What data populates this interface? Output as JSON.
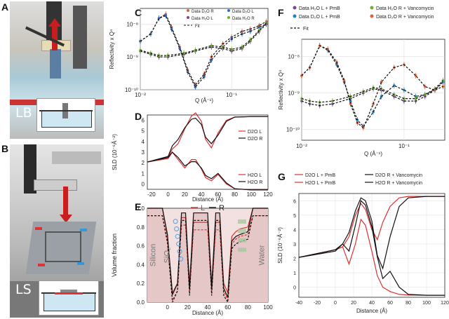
{
  "panels": {
    "A": {
      "letter": "A",
      "setup": "LB"
    },
    "B": {
      "letter": "B",
      "setup": "LS"
    },
    "C": {
      "letter": "C"
    },
    "D": {
      "letter": "D"
    },
    "E": {
      "letter": "E"
    },
    "F": {
      "letter": "F"
    },
    "G": {
      "letter": "G"
    }
  },
  "chart_data": [
    {
      "id": "C",
      "type": "line",
      "xlabel": "Q (Å⁻¹)",
      "ylabel": "Reflectivity x Q⁴",
      "x_scale": "log",
      "y_scale": "log",
      "xlim": [
        0.01,
        0.25
      ],
      "ylim": [
        1e-10,
        3e-08
      ],
      "xticks": [
        "10⁻²",
        "10⁻¹"
      ],
      "yticks": [
        "10⁻⁸",
        "10⁻⁹",
        "10⁻¹⁰"
      ],
      "legend": [
        "Data D₂O R",
        "Data H₂O L",
        "Data D₂O L",
        "Data H₂O R",
        "Fit"
      ],
      "series": [
        {
          "name": "Data D₂O R",
          "color": "#e0603a",
          "x": [
            0.01,
            0.013,
            0.016,
            0.019,
            0.022,
            0.027,
            0.033,
            0.04,
            0.05,
            0.06,
            0.08,
            0.1,
            0.13,
            0.16,
            0.2,
            0.24
          ],
          "y": [
            3e-09,
            5e-09,
            1.5e-08,
            2e-08,
            8e-09,
            2e-09,
            4e-10,
            1.4e-10,
            3e-10,
            1e-09,
            2.5e-09,
            4e-09,
            6e-09,
            7e-09,
            9e-09,
            1.2e-08
          ]
        },
        {
          "name": "Data D₂O L",
          "color": "#3070c0",
          "x": [
            0.01,
            0.013,
            0.016,
            0.019,
            0.022,
            0.027,
            0.033,
            0.04,
            0.05,
            0.06,
            0.08,
            0.1,
            0.13,
            0.16,
            0.2,
            0.24
          ],
          "y": [
            3e-09,
            5e-09,
            1.5e-08,
            1.8e-08,
            7e-09,
            1.8e-09,
            3.5e-10,
            1.2e-10,
            2.5e-10,
            8e-10,
            2e-09,
            3.5e-09,
            5e-09,
            6e-09,
            8e-09,
            1e-08
          ]
        },
        {
          "name": "Data H₂O L",
          "color": "#8040a0",
          "x": [
            0.01,
            0.013,
            0.016,
            0.02,
            0.03,
            0.04,
            0.06,
            0.08,
            0.1,
            0.13,
            0.16,
            0.2,
            0.24
          ],
          "y": [
            1.5e-09,
            1.2e-09,
            1e-09,
            1e-09,
            1.2e-09,
            1.5e-09,
            2e-09,
            1.8e-09,
            1.5e-09,
            1.8e-09,
            3e-09,
            6e-09,
            1e-08
          ]
        },
        {
          "name": "Data H₂O R",
          "color": "#70b030",
          "x": [
            0.01,
            0.013,
            0.016,
            0.02,
            0.03,
            0.04,
            0.06,
            0.08,
            0.1,
            0.13,
            0.16,
            0.2,
            0.24
          ],
          "y": [
            1.6e-09,
            1.3e-09,
            1.1e-09,
            1.1e-09,
            1.3e-09,
            1.6e-09,
            2.2e-09,
            2e-09,
            1.7e-09,
            2e-09,
            3.3e-09,
            6.5e-09,
            1.1e-08
          ]
        }
      ]
    },
    {
      "id": "D",
      "type": "line",
      "xlabel": "Distance (Å)",
      "ylabel": "SLD (10⁻⁶Å⁻²)",
      "xlim": [
        -25,
        120
      ],
      "ylim": [
        -0.5,
        6.5
      ],
      "xticks": [
        -20,
        0,
        20,
        40,
        60,
        80,
        100,
        120
      ],
      "yticks": [
        0,
        1,
        2,
        3,
        4,
        5,
        6
      ],
      "legend_top": [
        "D2O L",
        "D2O R"
      ],
      "legend_bottom": [
        "H2O L",
        "H2O R"
      ],
      "series": [
        {
          "name": "D2O L",
          "color": "#e03030",
          "x": [
            -25,
            0,
            5,
            12,
            20,
            28,
            33,
            40,
            45,
            52,
            60,
            70,
            80,
            100,
            120
          ],
          "y": [
            2.07,
            2.5,
            3.3,
            3.8,
            5.2,
            6.4,
            6.7,
            5.9,
            4.2,
            3.4,
            4.8,
            6.0,
            6.3,
            6.35,
            6.35
          ]
        },
        {
          "name": "D2O R",
          "color": "#111111",
          "x": [
            -25,
            0,
            5,
            12,
            20,
            28,
            33,
            40,
            45,
            52,
            60,
            70,
            80,
            100,
            120
          ],
          "y": [
            2.07,
            2.6,
            3.6,
            4.2,
            5.3,
            6.1,
            6.2,
            5.6,
            4.4,
            3.8,
            4.6,
            5.9,
            6.3,
            6.35,
            6.35
          ]
        },
        {
          "name": "H2O L",
          "color": "#e03030",
          "x": [
            -25,
            0,
            5,
            12,
            20,
            28,
            33,
            40,
            45,
            52,
            60,
            70,
            80,
            100,
            120
          ],
          "y": [
            2.07,
            2.4,
            3.0,
            2.3,
            1.5,
            2.3,
            2.3,
            1.4,
            0.6,
            0.3,
            0.9,
            0.0,
            -0.45,
            -0.56,
            -0.56
          ]
        },
        {
          "name": "H2O R",
          "color": "#111111",
          "x": [
            -25,
            0,
            5,
            12,
            20,
            28,
            33,
            40,
            45,
            52,
            60,
            70,
            80,
            100,
            120
          ],
          "y": [
            2.07,
            2.5,
            3.0,
            2.5,
            1.7,
            2.1,
            2.1,
            1.5,
            0.8,
            0.5,
            1.0,
            0.1,
            -0.45,
            -0.56,
            -0.56
          ]
        }
      ]
    },
    {
      "id": "E",
      "type": "area",
      "xlabel": "Distance (Å)",
      "ylabel": "Volume fraction",
      "xlim": [
        -20,
        100
      ],
      "ylim": [
        0,
        1.0
      ],
      "xticks": [
        0,
        20,
        40,
        60,
        80,
        100
      ],
      "yticks": [
        0.0,
        0.2,
        0.4,
        0.6,
        0.8,
        1.0
      ],
      "legend": [
        "L",
        "R"
      ],
      "region_labels": [
        "Silicon",
        "SiO₂",
        "Water"
      ],
      "series": [
        {
          "name": "L",
          "color": "#e03030",
          "x": [
            -20,
            -5,
            0,
            5,
            10,
            14,
            18,
            22,
            26,
            30,
            35,
            40,
            44,
            48,
            52,
            56,
            60,
            64,
            68,
            72,
            80,
            85,
            90,
            100
          ],
          "y": [
            1,
            1,
            0.7,
            0.1,
            0.2,
            0.9,
            0.9,
            0.2,
            0.85,
            0.85,
            0.85,
            0.85,
            0.2,
            0.85,
            0.85,
            0.2,
            0.1,
            0.7,
            0.75,
            0.78,
            0.8,
            1,
            1,
            1
          ]
        },
        {
          "name": "R",
          "color": "#111111",
          "x": [
            -20,
            -5,
            0,
            5,
            10,
            14,
            18,
            22,
            26,
            30,
            35,
            40,
            44,
            48,
            52,
            56,
            60,
            64,
            68,
            72,
            80,
            85,
            90,
            100
          ],
          "y": [
            1,
            1,
            0.72,
            0.08,
            0.2,
            0.95,
            0.95,
            0.15,
            0.95,
            0.95,
            0.95,
            0.95,
            0.15,
            0.95,
            0.95,
            0.15,
            0.05,
            0.65,
            0.7,
            0.72,
            0.75,
            1,
            1,
            1
          ]
        }
      ]
    },
    {
      "id": "F",
      "type": "line",
      "xlabel": "Q (Å⁻¹)",
      "ylabel": "Reflectivity x Q⁴",
      "x_scale": "log",
      "y_scale": "log",
      "xlim": [
        0.01,
        0.25
      ],
      "ylim": [
        5e-11,
        3e-08
      ],
      "xticks": [
        "10⁻²",
        "10⁻¹"
      ],
      "yticks": [
        "10⁻⁸",
        "10⁻⁹",
        "10⁻¹⁰"
      ],
      "legend": [
        "Data H₂O L + PmB",
        "Data D₂O L + PmB",
        "Data H₂O R + Vancomycin",
        "Data D₂O R + Vancomycin",
        "Fit"
      ],
      "series": [
        {
          "name": "Data H₂O L + PmB",
          "color": "#8040a0",
          "x": [
            0.01,
            0.012,
            0.015,
            0.02,
            0.03,
            0.04,
            0.05,
            0.06,
            0.08,
            0.1,
            0.13,
            0.16,
            0.2,
            0.24
          ],
          "y": [
            6e-10,
            5e-10,
            4.5e-10,
            5e-10,
            7e-10,
            1e-09,
            1.3e-09,
            1.2e-09,
            8e-10,
            6e-10,
            6e-10,
            8e-10,
            1.2e-09,
            2e-09
          ]
        },
        {
          "name": "Data D₂O L + PmB",
          "color": "#2080c0",
          "x": [
            0.01,
            0.012,
            0.015,
            0.018,
            0.022,
            0.026,
            0.03,
            0.035,
            0.04,
            0.05,
            0.06,
            0.08,
            0.1,
            0.13,
            0.16,
            0.2,
            0.24
          ],
          "y": [
            3e-09,
            5e-09,
            2e-08,
            1.5e-08,
            6e-09,
            2e-09,
            6e-10,
            1.8e-10,
            1.2e-10,
            3e-10,
            8e-10,
            1.6e-09,
            1.2e-09,
            8e-10,
            9e-10,
            1.2e-09,
            2e-09
          ]
        },
        {
          "name": "Data H₂O R + Vancomycin",
          "color": "#70b030",
          "x": [
            0.01,
            0.012,
            0.015,
            0.02,
            0.03,
            0.04,
            0.05,
            0.06,
            0.08,
            0.1,
            0.13,
            0.16,
            0.2,
            0.24
          ],
          "y": [
            7e-10,
            6e-10,
            5.5e-10,
            6e-10,
            8e-10,
            1.1e-09,
            1.4e-09,
            1.3e-09,
            9e-10,
            7e-10,
            7e-10,
            9e-10,
            1.3e-09,
            2.2e-09
          ]
        },
        {
          "name": "Data D₂O R + Vancomycin",
          "color": "#e0603a",
          "x": [
            0.01,
            0.012,
            0.015,
            0.018,
            0.022,
            0.026,
            0.03,
            0.035,
            0.04,
            0.05,
            0.06,
            0.08,
            0.1,
            0.13,
            0.16,
            0.2,
            0.24
          ],
          "y": [
            3e-09,
            5e-09,
            2e-08,
            1.6e-08,
            7e-09,
            2.2e-09,
            5e-10,
            1.5e-10,
            1.1e-10,
            5e-10,
            2e-09,
            5e-09,
            6e-09,
            3e-09,
            1.5e-09,
            1.2e-09,
            1.5e-09
          ]
        }
      ]
    },
    {
      "id": "G",
      "type": "line",
      "xlabel": "Distance (Å)",
      "ylabel": "SLD (10⁻⁶Å⁻²)",
      "xlim": [
        -40,
        120
      ],
      "ylim": [
        -0.7,
        6.5
      ],
      "xticks": [
        -40,
        -20,
        0,
        20,
        40,
        60,
        80,
        100,
        120
      ],
      "yticks": [
        0,
        1,
        2,
        3,
        4,
        5,
        6
      ],
      "legend": [
        "D2O L + PmB",
        "D2O R + Vancomycin",
        "H2O L + PmB",
        "H2O R + Vancomycin"
      ],
      "series": [
        {
          "name": "D2O L + PmB",
          "color": "#e03030",
          "x": [
            -40,
            0,
            8,
            15,
            22,
            28,
            33,
            40,
            46,
            52,
            60,
            70,
            80,
            100,
            120
          ],
          "y": [
            2.07,
            2.6,
            2.8,
            3.5,
            5.0,
            5.8,
            5.4,
            4.0,
            3.3,
            4.5,
            5.6,
            6.2,
            6.3,
            6.3,
            6.3
          ]
        },
        {
          "name": "H2O L + PmB",
          "color": "#e03030",
          "x": [
            -40,
            0,
            8,
            15,
            22,
            28,
            33,
            40,
            46,
            52,
            60,
            70,
            80,
            100,
            120
          ],
          "y": [
            2.07,
            2.6,
            2.8,
            1.6,
            3.0,
            4.7,
            4.3,
            2.5,
            0.8,
            0.0,
            -0.3,
            -0.5,
            -0.55,
            -0.56,
            -0.56
          ]
        },
        {
          "name": "D2O R + Vancomycin",
          "color": "#111111",
          "x": [
            -40,
            0,
            8,
            15,
            22,
            28,
            33,
            40,
            46,
            52,
            60,
            70,
            80,
            100,
            120
          ],
          "y": [
            2.07,
            2.5,
            3.0,
            3.8,
            5.3,
            6.2,
            6.0,
            4.6,
            2.2,
            1.3,
            3.5,
            5.6,
            6.2,
            6.3,
            6.3
          ]
        },
        {
          "name": "H2O R + Vancomycin",
          "color": "#111111",
          "x": [
            -40,
            0,
            8,
            15,
            22,
            28,
            33,
            40,
            46,
            52,
            60,
            70,
            80,
            100,
            120
          ],
          "y": [
            2.07,
            2.6,
            3.0,
            2.5,
            4.3,
            6.0,
            5.7,
            4.2,
            2.1,
            0.6,
            1.1,
            0.0,
            -0.5,
            -0.56,
            -0.56
          ]
        }
      ]
    }
  ]
}
